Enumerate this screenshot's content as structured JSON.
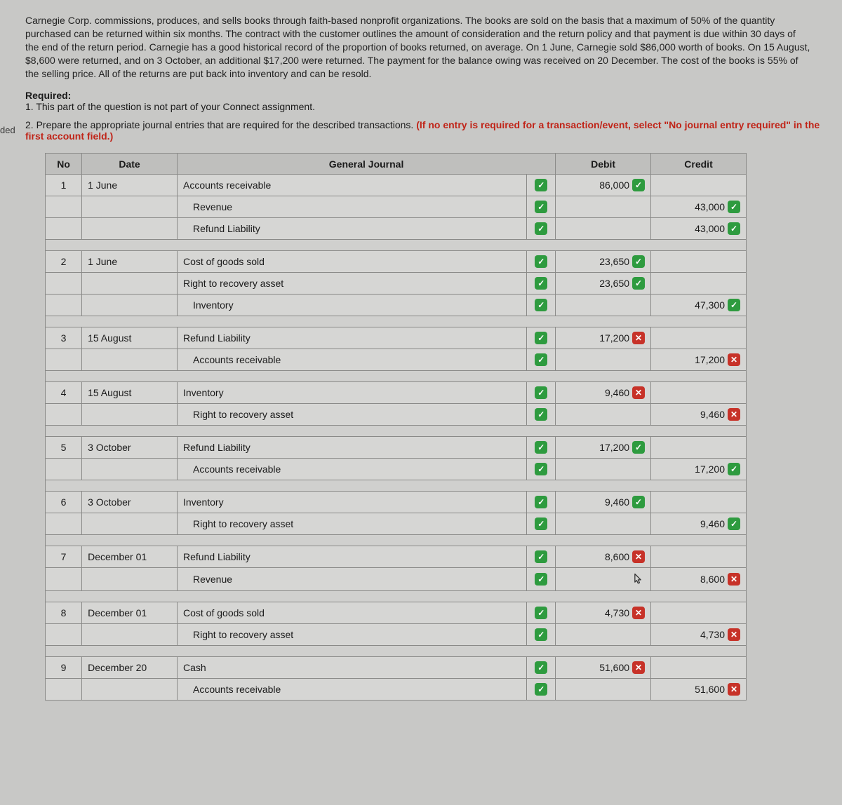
{
  "margin_label": "ded",
  "narrative": "Carnegie Corp. commissions, produces, and sells books through faith-based nonprofit organizations. The books are sold on the basis that a maximum of 50% of the quantity purchased can be returned within six months. The contract with the customer outlines the amount of consideration and the return policy and that payment is due within 30 days of the end of the return period. Carnegie has a good historical record of the proportion of books returned, on average. On 1 June, Carnegie sold $86,000 worth of books. On 15 August, $8,600 were returned, and on 3 October, an additional $17,200 were returned. The payment for the balance owing was received on 20 December. The cost of the books is 55% of the selling price. All of the returns are put back into inventory and can be resold.",
  "required": {
    "title": "Required:",
    "line1": "1. This part of the question is not part of your Connect assignment.",
    "line2_plain": "2. Prepare the appropriate journal entries that are required for the described transactions. ",
    "line2_red": "(If no entry is required for a transaction/event, select \"No journal entry required\" in the first account field.)"
  },
  "headers": {
    "no": "No",
    "date": "Date",
    "gj": "General Journal",
    "debit": "Debit",
    "credit": "Credit"
  },
  "colors": {
    "ok": "#2e9b3f",
    "bad": "#c73228",
    "header_bg": "#bfbfbd",
    "table_bg": "#d6d6d4",
    "page_bg": "#c8c8c6",
    "red_text": "#c02418"
  },
  "rows": [
    {
      "type": "line",
      "no": "1",
      "date": "1 June",
      "account": "Accounts receivable",
      "indent": 0,
      "chk": "ok",
      "debit": "86,000",
      "debit_mark": "ok",
      "credit": "",
      "credit_mark": ""
    },
    {
      "type": "line",
      "no": "",
      "date": "",
      "account": "Revenue",
      "indent": 1,
      "chk": "ok",
      "debit": "",
      "debit_mark": "",
      "credit": "43,000",
      "credit_mark": "ok"
    },
    {
      "type": "line",
      "no": "",
      "date": "",
      "account": "Refund Liability",
      "indent": 1,
      "chk": "ok",
      "debit": "",
      "debit_mark": "",
      "credit": "43,000",
      "credit_mark": "ok"
    },
    {
      "type": "spacer"
    },
    {
      "type": "line",
      "no": "2",
      "date": "1 June",
      "account": "Cost of goods sold",
      "indent": 0,
      "chk": "ok",
      "debit": "23,650",
      "debit_mark": "ok",
      "credit": "",
      "credit_mark": ""
    },
    {
      "type": "line",
      "no": "",
      "date": "",
      "account": "Right to recovery asset",
      "indent": 0,
      "chk": "ok",
      "debit": "23,650",
      "debit_mark": "ok",
      "credit": "",
      "credit_mark": ""
    },
    {
      "type": "line",
      "no": "",
      "date": "",
      "account": "Inventory",
      "indent": 1,
      "chk": "ok",
      "debit": "",
      "debit_mark": "",
      "credit": "47,300",
      "credit_mark": "ok"
    },
    {
      "type": "spacer"
    },
    {
      "type": "line",
      "no": "3",
      "date": "15 August",
      "account": "Refund Liability",
      "indent": 0,
      "chk": "ok",
      "debit": "17,200",
      "debit_mark": "bad",
      "credit": "",
      "credit_mark": ""
    },
    {
      "type": "line",
      "no": "",
      "date": "",
      "account": "Accounts receivable",
      "indent": 1,
      "chk": "ok",
      "debit": "",
      "debit_mark": "",
      "credit": "17,200",
      "credit_mark": "bad"
    },
    {
      "type": "spacer"
    },
    {
      "type": "line",
      "no": "4",
      "date": "15 August",
      "account": "Inventory",
      "indent": 0,
      "chk": "ok",
      "debit": "9,460",
      "debit_mark": "bad",
      "credit": "",
      "credit_mark": ""
    },
    {
      "type": "line",
      "no": "",
      "date": "",
      "account": "Right to recovery asset",
      "indent": 1,
      "chk": "ok",
      "debit": "",
      "debit_mark": "",
      "credit": "9,460",
      "credit_mark": "bad"
    },
    {
      "type": "spacer"
    },
    {
      "type": "line",
      "no": "5",
      "date": "3 October",
      "account": "Refund Liability",
      "indent": 0,
      "chk": "ok",
      "debit": "17,200",
      "debit_mark": "ok",
      "credit": "",
      "credit_mark": ""
    },
    {
      "type": "line",
      "no": "",
      "date": "",
      "account": "Accounts receivable",
      "indent": 1,
      "chk": "ok",
      "debit": "",
      "debit_mark": "",
      "credit": "17,200",
      "credit_mark": "ok"
    },
    {
      "type": "spacer"
    },
    {
      "type": "line",
      "no": "6",
      "date": "3 October",
      "account": "Inventory",
      "indent": 0,
      "chk": "ok",
      "debit": "9,460",
      "debit_mark": "ok",
      "credit": "",
      "credit_mark": ""
    },
    {
      "type": "line",
      "no": "",
      "date": "",
      "account": "Right to recovery asset",
      "indent": 1,
      "chk": "ok",
      "debit": "",
      "debit_mark": "",
      "credit": "9,460",
      "credit_mark": "ok"
    },
    {
      "type": "spacer"
    },
    {
      "type": "line",
      "no": "7",
      "date": "December 01",
      "account": "Refund Liability",
      "indent": 0,
      "chk": "ok",
      "debit": "8,600",
      "debit_mark": "bad",
      "credit": "",
      "credit_mark": ""
    },
    {
      "type": "line",
      "no": "",
      "date": "",
      "account": "Revenue",
      "indent": 1,
      "chk": "ok",
      "debit": "cursor",
      "debit_mark": "",
      "credit": "8,600",
      "credit_mark": "bad"
    },
    {
      "type": "spacer"
    },
    {
      "type": "line",
      "no": "8",
      "date": "December 01",
      "account": "Cost of goods sold",
      "indent": 0,
      "chk": "ok",
      "debit": "4,730",
      "debit_mark": "bad",
      "credit": "",
      "credit_mark": ""
    },
    {
      "type": "line",
      "no": "",
      "date": "",
      "account": "Right to recovery asset",
      "indent": 1,
      "chk": "ok",
      "debit": "",
      "debit_mark": "",
      "credit": "4,730",
      "credit_mark": "bad"
    },
    {
      "type": "spacer"
    },
    {
      "type": "line",
      "no": "9",
      "date": "December 20",
      "account": "Cash",
      "indent": 0,
      "chk": "ok",
      "debit": "51,600",
      "debit_mark": "bad",
      "credit": "",
      "credit_mark": ""
    },
    {
      "type": "line",
      "no": "",
      "date": "",
      "account": "Accounts receivable",
      "indent": 1,
      "chk": "ok",
      "debit": "",
      "debit_mark": "",
      "credit": "51,600",
      "credit_mark": "bad"
    }
  ]
}
